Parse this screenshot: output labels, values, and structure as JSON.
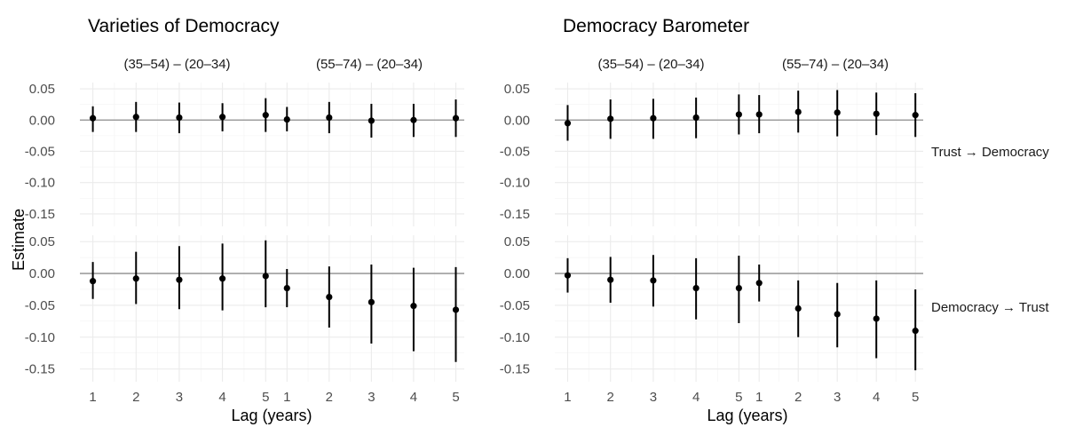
{
  "y_axis_title": "Estimate",
  "x_axis_title": "Lag (years)",
  "row_labels": [
    "Trust → Democracy",
    "Democracy → Trust"
  ],
  "chart_data": [
    {
      "type": "scatter",
      "title": "Varieties of Democracy",
      "xlabel": "Lag (years)",
      "ylabel": "Estimate",
      "x": [
        1,
        2,
        3,
        4,
        5
      ],
      "ylim": [
        -0.17,
        0.06
      ],
      "y_ticks": [
        -0.15,
        -0.1,
        -0.05,
        0.0,
        0.05
      ],
      "facets": [
        {
          "column": "(35–54) – (20–34)",
          "row": "Trust → Democracy",
          "estimate": [
            0.003,
            0.005,
            0.004,
            0.005,
            0.008
          ],
          "lower": [
            -0.019,
            -0.019,
            -0.021,
            -0.018,
            -0.019
          ],
          "upper": [
            0.022,
            0.029,
            0.028,
            0.027,
            0.035
          ]
        },
        {
          "column": "(55–74) – (20–34)",
          "row": "Trust → Democracy",
          "estimate": [
            0.001,
            0.004,
            -0.001,
            0.0,
            0.003
          ],
          "lower": [
            -0.018,
            -0.021,
            -0.028,
            -0.027,
            -0.027
          ],
          "upper": [
            0.021,
            0.029,
            0.026,
            0.026,
            0.033
          ]
        },
        {
          "column": "(35–54) – (20–34)",
          "row": "Democracy → Trust",
          "estimate": [
            -0.012,
            -0.008,
            -0.01,
            -0.008,
            -0.004
          ],
          "lower": [
            -0.04,
            -0.048,
            -0.056,
            -0.058,
            -0.053
          ],
          "upper": [
            0.018,
            0.034,
            0.043,
            0.047,
            0.052
          ]
        },
        {
          "column": "(55–74) – (20–34)",
          "row": "Democracy → Trust",
          "estimate": [
            -0.023,
            -0.037,
            -0.045,
            -0.051,
            -0.057
          ],
          "lower": [
            -0.053,
            -0.085,
            -0.11,
            -0.122,
            -0.139
          ],
          "upper": [
            0.007,
            0.011,
            0.014,
            0.009,
            0.01
          ]
        }
      ]
    },
    {
      "type": "scatter",
      "title": "Democracy Barometer",
      "xlabel": "Lag (years)",
      "ylabel": "",
      "x": [
        1,
        2,
        3,
        4,
        5
      ],
      "ylim": [
        -0.17,
        0.06
      ],
      "y_ticks": [
        -0.15,
        -0.1,
        -0.05,
        0.0,
        0.05
      ],
      "facets": [
        {
          "column": "(35–54) – (20–34)",
          "row": "Trust → Democracy",
          "estimate": [
            -0.005,
            0.002,
            0.003,
            0.004,
            0.009
          ],
          "lower": [
            -0.033,
            -0.03,
            -0.03,
            -0.029,
            -0.023
          ],
          "upper": [
            0.024,
            0.033,
            0.034,
            0.036,
            0.041
          ]
        },
        {
          "column": "(55–74) – (20–34)",
          "row": "Trust → Democracy",
          "estimate": [
            0.009,
            0.013,
            0.012,
            0.01,
            0.008
          ],
          "lower": [
            -0.021,
            -0.02,
            -0.026,
            -0.024,
            -0.027
          ],
          "upper": [
            0.04,
            0.047,
            0.048,
            0.044,
            0.043
          ]
        },
        {
          "column": "(35–54) – (20–34)",
          "row": "Democracy → Trust",
          "estimate": [
            -0.003,
            -0.01,
            -0.011,
            -0.023,
            -0.023
          ],
          "lower": [
            -0.03,
            -0.046,
            -0.052,
            -0.072,
            -0.078
          ],
          "upper": [
            0.024,
            0.026,
            0.029,
            0.024,
            0.028
          ]
        },
        {
          "column": "(55–74) – (20–34)",
          "row": "Democracy → Trust",
          "estimate": [
            -0.015,
            -0.055,
            -0.064,
            -0.071,
            -0.09
          ],
          "lower": [
            -0.044,
            -0.1,
            -0.116,
            -0.133,
            -0.152
          ],
          "upper": [
            0.014,
            -0.011,
            -0.015,
            -0.011,
            -0.025
          ]
        }
      ]
    }
  ]
}
